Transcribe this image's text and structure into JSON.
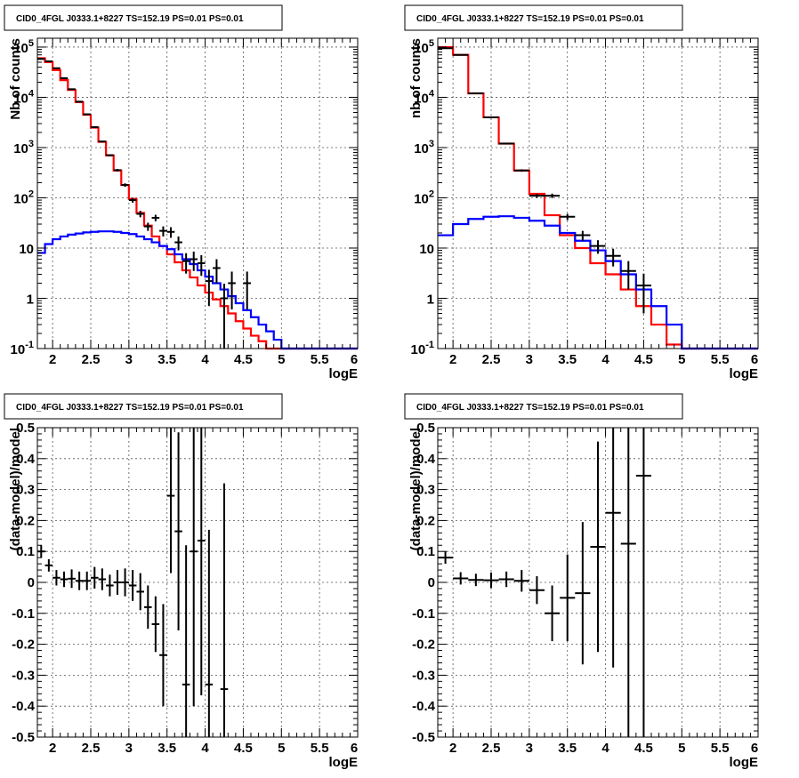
{
  "chart_data": [
    {
      "type": "histogram",
      "title": "CID0_4FGL J0333.1+8227 TS=152.19 PS=0.01 PS=0.01",
      "xlabel": "logE",
      "ylabel": "Nb of counts",
      "xlim": [
        1.8,
        6.0
      ],
      "ylim": [
        0.1,
        150000
      ],
      "yscale": "log",
      "grid": true,
      "bin_edges": [
        1.8,
        1.9,
        2.0,
        2.1,
        2.2,
        2.3,
        2.4,
        2.5,
        2.6,
        2.7,
        2.8,
        2.9,
        3.0,
        3.1,
        3.2,
        3.3,
        3.4,
        3.5,
        3.6,
        3.7,
        3.8,
        3.9,
        4.0,
        4.1,
        4.2,
        4.3,
        4.4,
        4.5,
        4.6,
        4.7,
        4.8,
        4.9,
        5.0,
        5.1,
        5.2,
        5.3,
        5.4,
        5.5,
        5.6,
        5.7,
        5.8,
        5.9,
        6.0
      ],
      "series": [
        {
          "color": "#ff0000",
          "values": [
            60000,
            50000,
            35000,
            22000,
            14000,
            8000,
            4500,
            2500,
            1300,
            700,
            350,
            180,
            95,
            50,
            28,
            17,
            11,
            7.5,
            5.2,
            3.6,
            2.6,
            1.8,
            1.3,
            0.95,
            0.7,
            0.5,
            0.35,
            0.25,
            0.18,
            0.14,
            0.1,
            0.1,
            0.1,
            0.1,
            0.1,
            0.1,
            0.1,
            0.1,
            0.1,
            0.1,
            0.1,
            0.1
          ]
        },
        {
          "color": "#0000ff",
          "values": [
            8,
            12,
            15,
            17,
            18.5,
            19.5,
            20.5,
            21,
            21.5,
            21.5,
            21,
            20,
            19,
            17,
            15,
            13,
            11,
            9.5,
            7.5,
            6,
            4.8,
            3.6,
            2.7,
            2.0,
            1.5,
            1.1,
            0.8,
            0.58,
            0.42,
            0.3,
            0.22,
            0.15,
            0.1,
            0.1,
            0.1,
            0.1,
            0.1,
            0.1,
            0.1,
            0.1,
            0.1,
            0.1
          ]
        }
      ],
      "points": [
        {
          "x": 1.85,
          "y": 58000,
          "err": 300
        },
        {
          "x": 1.95,
          "y": 52000,
          "err": 300
        },
        {
          "x": 2.05,
          "y": 38000,
          "err": 250
        },
        {
          "x": 2.15,
          "y": 24000,
          "err": 200
        },
        {
          "x": 2.25,
          "y": 14500,
          "err": 150
        },
        {
          "x": 2.35,
          "y": 8200,
          "err": 100
        },
        {
          "x": 2.45,
          "y": 4600,
          "err": 80
        },
        {
          "x": 2.55,
          "y": 2550,
          "err": 60
        },
        {
          "x": 2.65,
          "y": 1320,
          "err": 40
        },
        {
          "x": 2.75,
          "y": 705,
          "err": 30
        },
        {
          "x": 2.85,
          "y": 355,
          "err": 20
        },
        {
          "x": 2.95,
          "y": 180,
          "err": 14
        },
        {
          "x": 3.05,
          "y": 90,
          "err": 10
        },
        {
          "x": 3.15,
          "y": 48,
          "err": 7
        },
        {
          "x": 3.25,
          "y": 27,
          "err": 5
        },
        {
          "x": 3.35,
          "y": 40,
          "err": 6
        },
        {
          "x": 3.45,
          "y": 22,
          "err": 5
        },
        {
          "x": 3.55,
          "y": 21,
          "err": 5
        },
        {
          "x": 3.65,
          "y": 13,
          "err": 4
        },
        {
          "x": 3.75,
          "y": 5.5,
          "err": 2.4
        },
        {
          "x": 3.85,
          "y": 6,
          "err": 2.5
        },
        {
          "x": 3.95,
          "y": 5,
          "err": 2.2
        },
        {
          "x": 4.05,
          "y": 2.2,
          "err": 1.5
        },
        {
          "x": 4.15,
          "y": 4,
          "err": 2
        },
        {
          "x": 4.25,
          "y": 1,
          "err": 0.95
        },
        {
          "x": 4.35,
          "y": 2,
          "err": 1.4
        },
        {
          "x": 4.55,
          "y": 2,
          "err": 1.4
        }
      ]
    },
    {
      "type": "histogram",
      "title": "CID0_4FGL J0333.1+8227 TS=152.19 PS=0.01 PS=0.01",
      "xlabel": "logE",
      "ylabel": "nb of counts",
      "xlim": [
        1.8,
        6.0
      ],
      "ylim": [
        0.1,
        150000
      ],
      "yscale": "log",
      "grid": true,
      "bin_edges": [
        1.8,
        2.0,
        2.2,
        2.4,
        2.6,
        2.8,
        3.0,
        3.2,
        3.4,
        3.6,
        3.8,
        4.0,
        4.2,
        4.4,
        4.6,
        4.8,
        5.0,
        5.2,
        5.4,
        5.6,
        5.8,
        6.0
      ],
      "series": [
        {
          "color": "#ff0000",
          "values": [
            100000,
            70000,
            12000,
            4000,
            1200,
            350,
            120,
            45,
            18,
            10,
            5,
            3,
            1.5,
            0.7,
            0.3,
            0.12,
            0.1,
            0.1,
            0.1,
            0.1,
            0.1
          ]
        },
        {
          "color": "#0000ff",
          "values": [
            18,
            30,
            38,
            42,
            43,
            40,
            35,
            28,
            20,
            14,
            9,
            5.5,
            3,
            1.5,
            0.7,
            0.3,
            0.1,
            0.1,
            0.1,
            0.1,
            0.1
          ]
        }
      ],
      "points": [
        {
          "x": 1.9,
          "y": 95000,
          "err": 400
        },
        {
          "x": 2.1,
          "y": 70000,
          "err": 300
        },
        {
          "x": 2.3,
          "y": 12000,
          "err": 110
        },
        {
          "x": 2.5,
          "y": 4000,
          "err": 65
        },
        {
          "x": 2.7,
          "y": 1200,
          "err": 35
        },
        {
          "x": 2.9,
          "y": 350,
          "err": 19
        },
        {
          "x": 3.1,
          "y": 110,
          "err": 10
        },
        {
          "x": 3.3,
          "y": 110,
          "err": 11
        },
        {
          "x": 3.5,
          "y": 42,
          "err": 6
        },
        {
          "x": 3.7,
          "y": 18,
          "err": 4
        },
        {
          "x": 3.9,
          "y": 11,
          "err": 3.3
        },
        {
          "x": 4.1,
          "y": 7,
          "err": 2.7
        },
        {
          "x": 4.3,
          "y": 3.5,
          "err": 2
        },
        {
          "x": 4.5,
          "y": 1.8,
          "err": 1.3
        }
      ]
    },
    {
      "type": "scatter",
      "title": "CID0_4FGL J0333.1+8227 TS=152.19 PS=0.01 PS=0.01",
      "xlabel": "logE",
      "ylabel": "(data-model)/model",
      "xlim": [
        1.8,
        6.0
      ],
      "ylim": [
        -0.5,
        0.5
      ],
      "grid": true,
      "xhalf": 0.05,
      "points": [
        {
          "x": 1.85,
          "y": 0.1,
          "err": 0.02
        },
        {
          "x": 1.95,
          "y": 0.055,
          "err": 0.02
        },
        {
          "x": 2.05,
          "y": 0.015,
          "err": 0.025
        },
        {
          "x": 2.15,
          "y": 0.01,
          "err": 0.025
        },
        {
          "x": 2.25,
          "y": 0.012,
          "err": 0.03
        },
        {
          "x": 2.35,
          "y": 0.005,
          "err": 0.03
        },
        {
          "x": 2.45,
          "y": 0.005,
          "err": 0.03
        },
        {
          "x": 2.55,
          "y": 0.015,
          "err": 0.035
        },
        {
          "x": 2.65,
          "y": 0.01,
          "err": 0.035
        },
        {
          "x": 2.75,
          "y": -0.01,
          "err": 0.035
        },
        {
          "x": 2.85,
          "y": 0.0,
          "err": 0.04
        },
        {
          "x": 2.95,
          "y": 0.0,
          "err": 0.045
        },
        {
          "x": 3.05,
          "y": -0.01,
          "err": 0.05
        },
        {
          "x": 3.15,
          "y": -0.03,
          "err": 0.06
        },
        {
          "x": 3.25,
          "y": -0.08,
          "err": 0.07
        },
        {
          "x": 3.35,
          "y": -0.135,
          "err": 0.09
        },
        {
          "x": 3.45,
          "y": -0.235,
          "err": 0.165
        },
        {
          "x": 3.55,
          "y": 0.28,
          "err": 0.25
        },
        {
          "x": 3.65,
          "y": 0.165,
          "err": 0.32
        },
        {
          "x": 3.75,
          "y": -0.33,
          "err": 0.45
        },
        {
          "x": 3.85,
          "y": 0.1,
          "err": 0.5
        },
        {
          "x": 3.95,
          "y": 0.135,
          "err": 0.5
        },
        {
          "x": 4.05,
          "y": -0.33,
          "err": 0.5
        },
        {
          "x": 4.25,
          "y": -0.345,
          "err": 0.665
        }
      ]
    },
    {
      "type": "scatter",
      "title": "CID0_4FGL J0333.1+8227 TS=152.19 PS=0.01 PS=0.01",
      "xlabel": "logE",
      "ylabel": "(data-model)/model",
      "xlim": [
        1.8,
        6.0
      ],
      "ylim": [
        -0.5,
        0.5
      ],
      "grid": true,
      "xhalf": 0.1,
      "points": [
        {
          "x": 1.9,
          "y": 0.08,
          "err": 0.02
        },
        {
          "x": 2.1,
          "y": 0.013,
          "err": 0.02
        },
        {
          "x": 2.3,
          "y": 0.008,
          "err": 0.02
        },
        {
          "x": 2.5,
          "y": 0.007,
          "err": 0.025
        },
        {
          "x": 2.7,
          "y": 0.01,
          "err": 0.025
        },
        {
          "x": 2.9,
          "y": 0.005,
          "err": 0.035
        },
        {
          "x": 3.1,
          "y": -0.025,
          "err": 0.045
        },
        {
          "x": 3.3,
          "y": -0.1,
          "err": 0.09
        },
        {
          "x": 3.5,
          "y": -0.05,
          "err": 0.14
        },
        {
          "x": 3.7,
          "y": -0.035,
          "err": 0.23
        },
        {
          "x": 3.9,
          "y": 0.115,
          "err": 0.34
        },
        {
          "x": 4.1,
          "y": 0.225,
          "err": 0.5
        },
        {
          "x": 4.3,
          "y": 0.125,
          "err": 0.7
        },
        {
          "x": 4.5,
          "y": 0.345,
          "err": 0.9
        }
      ]
    }
  ]
}
